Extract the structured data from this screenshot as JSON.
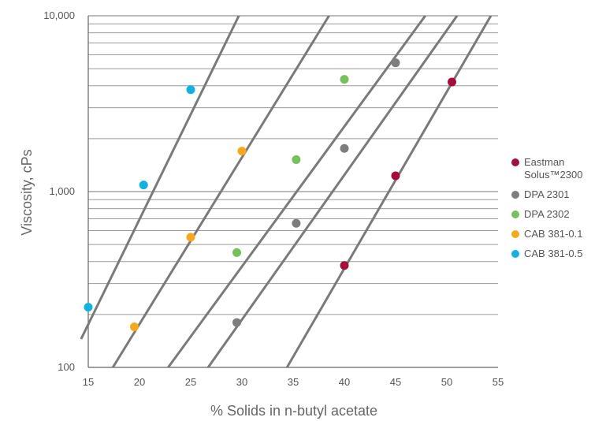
{
  "chart_data": {
    "type": "line",
    "xlabel": "% Solids in n-butyl acetate",
    "ylabel": "Viscosity, cPs",
    "xlim": [
      15,
      55
    ],
    "ylim": [
      100,
      10000
    ],
    "yscale": "log",
    "x_ticks": [
      "15",
      "20",
      "25",
      "30",
      "35",
      "40",
      "45",
      "50",
      "55"
    ],
    "y_ticks": [
      {
        "value": 100,
        "label": "100"
      },
      {
        "value": 1000,
        "label": "1,000"
      },
      {
        "value": 10000,
        "label": "10,000"
      }
    ],
    "grid": "horizontal, log minor",
    "legend_position": "right",
    "series": [
      {
        "name": "Eastman Solus™2300",
        "color": "#a50d3a",
        "points": [
          [
            40,
            380
          ],
          [
            45,
            1230
          ],
          [
            50.5,
            4200
          ]
        ],
        "line": [
          [
            34.4,
            100
          ],
          [
            54.3,
            10000
          ]
        ]
      },
      {
        "name": "DPA 2301",
        "color": "#7d7d7d",
        "points": [
          [
            29.5,
            180
          ],
          [
            35.3,
            660
          ],
          [
            40,
            1760
          ],
          [
            45,
            5400
          ]
        ],
        "line": [
          [
            26.7,
            100
          ],
          [
            51,
            10000
          ]
        ]
      },
      {
        "name": "DPA 2302",
        "color": "#76c15a",
        "points": [
          [
            29.5,
            450
          ],
          [
            35.3,
            1520
          ],
          [
            40,
            4350
          ]
        ],
        "line": [
          [
            22.8,
            100
          ],
          [
            47.9,
            10000
          ]
        ]
      },
      {
        "name": "CAB 381-0.1",
        "color": "#f6a81c",
        "points": [
          [
            19.5,
            170
          ],
          [
            25,
            550
          ],
          [
            30,
            1700
          ]
        ],
        "line": [
          [
            17.4,
            100
          ],
          [
            38.5,
            10000
          ]
        ]
      },
      {
        "name": "CAB 381-0.5",
        "color": "#12b2e0",
        "points": [
          [
            15,
            220
          ],
          [
            20.4,
            1090
          ],
          [
            25,
            3800
          ]
        ],
        "line": [
          [
            14.3,
            145
          ],
          [
            29.7,
            10000
          ]
        ]
      }
    ]
  }
}
